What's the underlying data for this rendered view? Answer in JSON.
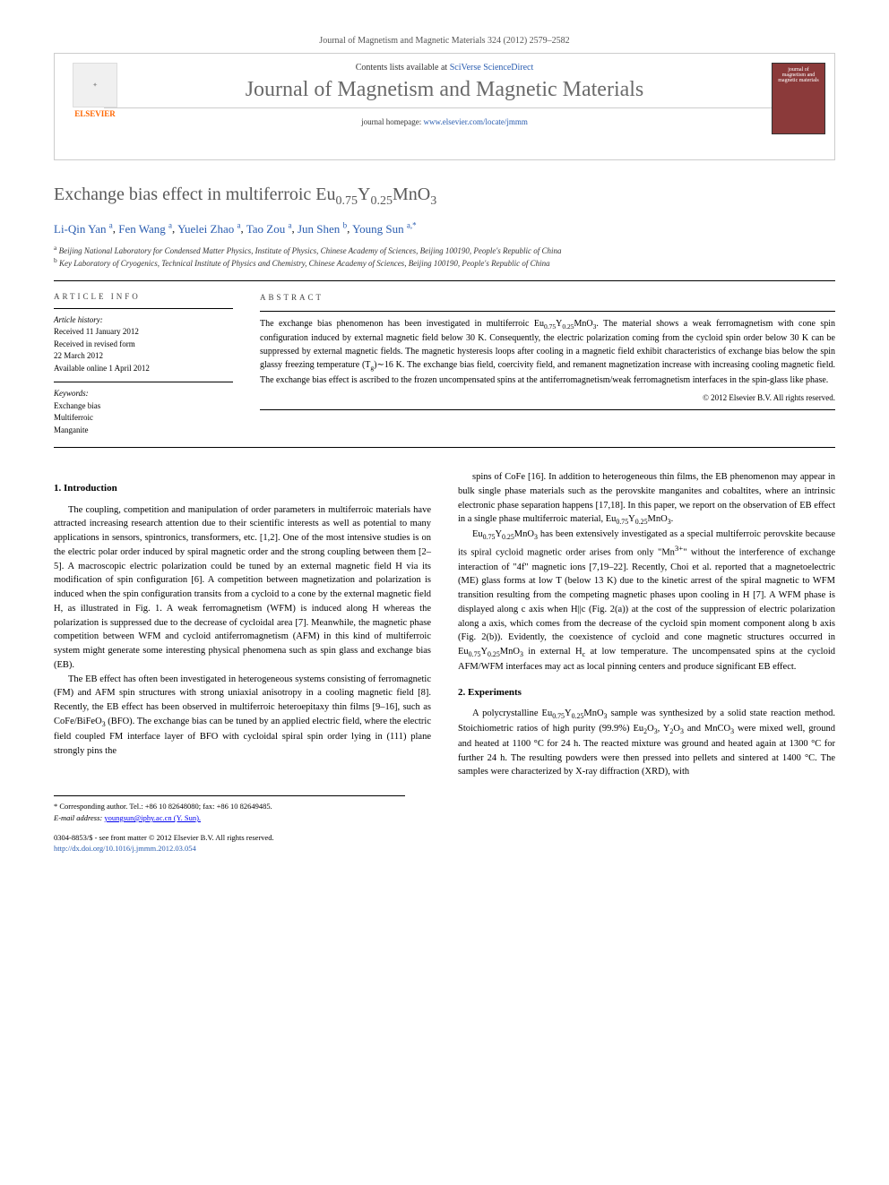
{
  "header": {
    "citation": "Journal of Magnetism and Magnetic Materials 324 (2012) 2579–2582",
    "contents_prefix": "Contents lists available at ",
    "contents_link": "SciVerse ScienceDirect",
    "journal_name": "Journal of Magnetism and Magnetic Materials",
    "homepage_prefix": "journal homepage: ",
    "homepage_url": "www.elsevier.com/locate/jmmm",
    "publisher_logo_text": "ELSEVIER",
    "cover_text": "journal of magnetism and magnetic materials"
  },
  "article": {
    "title_html": "Exchange bias effect in multiferroic Eu<sub>0.75</sub>Y<sub>0.25</sub>MnO<sub>3</sub>",
    "authors": [
      {
        "name": "Li-Qin Yan",
        "aff": "a"
      },
      {
        "name": "Fen Wang",
        "aff": "a"
      },
      {
        "name": "Yuelei Zhao",
        "aff": "a"
      },
      {
        "name": "Tao Zou",
        "aff": "a"
      },
      {
        "name": "Jun Shen",
        "aff": "b"
      },
      {
        "name": "Young Sun",
        "aff": "a,*"
      }
    ],
    "affiliations": [
      {
        "marker": "a",
        "text": "Beijing National Laboratory for Condensed Matter Physics, Institute of Physics, Chinese Academy of Sciences, Beijing 100190, People's Republic of China"
      },
      {
        "marker": "b",
        "text": "Key Laboratory of Cryogenics, Technical Institute of Physics and Chemistry, Chinese Academy of Sciences, Beijing 100190, People's Republic of China"
      }
    ]
  },
  "info": {
    "heading": "ARTICLE INFO",
    "history_label": "Article history:",
    "received": "Received 11 January 2012",
    "revised_l1": "Received in revised form",
    "revised_l2": "22 March 2012",
    "online": "Available online 1 April 2012",
    "keywords_label": "Keywords:",
    "keywords": [
      "Exchange bias",
      "Multiferroic",
      "Manganite"
    ]
  },
  "abstract": {
    "heading": "ABSTRACT",
    "text_html": "The exchange bias phenomenon has been investigated in multiferroic Eu<sub>0.75</sub>Y<sub>0.25</sub>MnO<sub>3</sub>. The material shows a weak ferromagnetism with cone spin configuration induced by external magnetic field below 30 K. Consequently, the electric polarization coming from the cycloid spin order below 30 K can be suppressed by external magnetic fields. The magnetic hysteresis loops after cooling in a magnetic field exhibit characteristics of exchange bias below the spin glassy freezing temperature (T<sub>g</sub>)∼16 K. The exchange bias field, coercivity field, and remanent magnetization increase with increasing cooling magnetic field. The exchange bias effect is ascribed to the frozen uncompensated spins at the antiferromagnetism/weak ferromagnetism interfaces in the spin-glass like phase.",
    "copyright": "© 2012 Elsevier B.V. All rights reserved."
  },
  "body": {
    "section1_heading": "1. Introduction",
    "p1": "The coupling, competition and manipulation of order parameters in multiferroic materials have attracted increasing research attention due to their scientific interests as well as potential to many applications in sensors, spintronics, transformers, etc. [1,2]. One of the most intensive studies is on the electric polar order induced by spiral magnetic order and the strong coupling between them [2–5]. A macroscopic electric polarization could be tuned by an external magnetic field H via its modification of spin configuration [6]. A competition between magnetization and polarization is induced when the spin configuration transits from a cycloid to a cone by the external magnetic field H, as illustrated in Fig. 1. A weak ferromagnetism (WFM) is induced along H whereas the polarization is suppressed due to the decrease of cycloidal area [7]. Meanwhile, the magnetic phase competition between WFM and cycloid antiferromagnetism (AFM) in this kind of multiferroic system might generate some interesting physical phenomena such as spin glass and exchange bias (EB).",
    "p2": "The EB effect has often been investigated in heterogeneous systems consisting of ferromagnetic (FM) and AFM spin structures with strong uniaxial anisotropy in a cooling magnetic field [8]. Recently, the EB effect has been observed in multiferroic heteroepitaxy thin films [9–16], such as CoFe/BiFeO<sub>3</sub> (BFO). The exchange bias can be tuned by an applied electric field, where the electric field coupled FM interface layer of BFO with cycloidal spiral spin order lying in (111) plane strongly pins the",
    "p3": "spins of CoFe [16]. In addition to heterogeneous thin films, the EB phenomenon may appear in bulk single phase materials such as the perovskite manganites and cobaltites, where an intrinsic electronic phase separation happens [17,18]. In this paper, we report on the observation of EB effect in a single phase multiferroic material, Eu<sub>0.75</sub>Y<sub>0.25</sub>MnO<sub>3</sub>.",
    "p4": "Eu<sub>0.75</sub>Y<sub>0.25</sub>MnO<sub>3</sub> has been extensively investigated as a special multiferroic perovskite because its spiral cycloid magnetic order arises from only \"Mn<sup>3+</sup>\" without the interference of exchange interaction of \"4f\" magnetic ions [7,19–22]. Recently, Choi et al. reported that a magnetoelectric (ME) glass forms at low T (below 13 K) due to the kinetic arrest of the spiral magnetic to WFM transition resulting from the competing magnetic phases upon cooling in H [7]. A WFM phase is displayed along c axis when H||c (Fig. 2(a)) at the cost of the suppression of electric polarization along a axis, which comes from the decrease of the cycloid spin moment component along b axis (Fig. 2(b)). Evidently, the coexistence of cycloid and cone magnetic structures occurred in Eu<sub>0.75</sub>Y<sub>0.25</sub>MnO<sub>3</sub> in external H<sub>c</sub> at low temperature. The uncompensated spins at the cycloid AFM/WFM interfaces may act as local pinning centers and produce significant EB effect.",
    "section2_heading": "2. Experiments",
    "p5": "A polycrystalline Eu<sub>0.75</sub>Y<sub>0.25</sub>MnO<sub>3</sub> sample was synthesized by a solid state reaction method. Stoichiometric ratios of high purity (99.9%) Eu<sub>2</sub>O<sub>3</sub>, Y<sub>2</sub>O<sub>3</sub> and MnCO<sub>3</sub> were mixed well, ground and heated at 1100 °C for 24 h. The reacted mixture was ground and heated again at 1300 °C for further 24 h. The resulting powders were then pressed into pellets and sintered at 1400 °C. The samples were characterized by X-ray diffraction (XRD), with"
  },
  "footnotes": {
    "corresponding": "* Corresponding author. Tel.: +86 10 82648080; fax: +86 10 82649485.",
    "email_label": "E-mail address:",
    "email": "youngsun@iphy.ac.cn (Y. Sun)."
  },
  "footer": {
    "issn": "0304-8853/$ - see front matter © 2012 Elsevier B.V. All rights reserved.",
    "doi": "http://dx.doi.org/10.1016/j.jmmm.2012.03.054"
  },
  "colors": {
    "link": "#2a5db0",
    "heading_gray": "#6a6a6a",
    "elsevier_orange": "#ff6600",
    "cover_bg": "#8b3a3a"
  }
}
